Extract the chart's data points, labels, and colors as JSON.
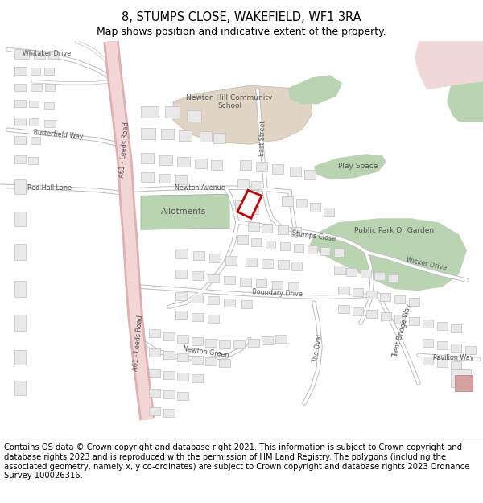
{
  "title_line1": "8, STUMPS CLOSE, WAKEFIELD, WF1 3RA",
  "title_line2": "Map shows position and indicative extent of the property.",
  "footer_text": "Contains OS data © Crown copyright and database right 2021. This information is subject to Crown copyright and database rights 2023 and is reproduced with the permission of HM Land Registry. The polygons (including the associated geometry, namely x, y co-ordinates) are subject to Crown copyright and database rights 2023 Ordnance Survey 100026316.",
  "bg_color": "#ffffff",
  "fig_width": 6.0,
  "fig_height": 6.25,
  "dpi": 100,
  "title_fontsize": 10.5,
  "subtitle_fontsize": 9,
  "footer_fontsize": 7.2,
  "map_bg": "#f9f9f9",
  "road_pink_outer": "#e0b0b0",
  "road_pink_inner": "#f2d5d5",
  "road_grey_outer": "#c8c8c8",
  "road_grey_inner": "#ffffff",
  "green_color": "#b8d4b0",
  "beige_color": "#e0d4c4",
  "pink_area": "#f0d8d8",
  "red_edge": "#cc0000",
  "building_face": "#e8e8e8",
  "building_edge": "#c0c0c0",
  "label_color": "#555555"
}
